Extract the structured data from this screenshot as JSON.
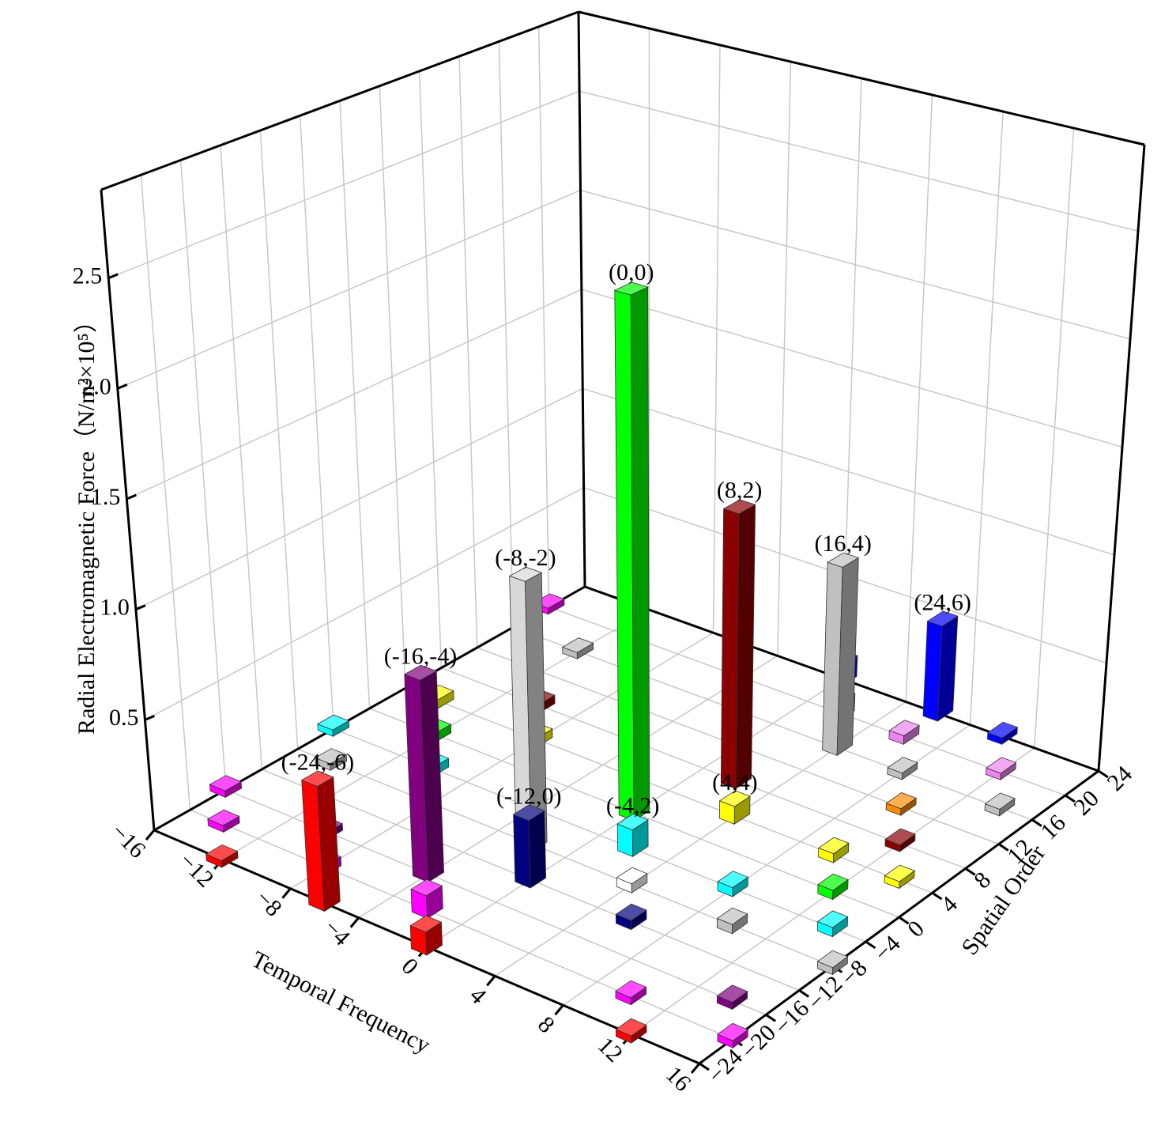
{
  "chart_data": {
    "type": "bar3d",
    "x_label": "Temporal Frequency",
    "y_label": "Spatial Order",
    "z_label": "Radial Electromagnetic Force（N/m²×10⁵）",
    "xlim": [
      -16,
      16
    ],
    "ylim": [
      -24,
      24
    ],
    "zlim": [
      0,
      2.9
    ],
    "xticks": [
      {
        "value": -16,
        "label": "−16"
      },
      {
        "value": -12,
        "label": "−12"
      },
      {
        "value": -8,
        "label": "−8"
      },
      {
        "value": -4,
        "label": "−4"
      },
      0,
      4,
      8,
      12,
      16
    ],
    "yticks": [
      {
        "value": -24,
        "label": "−24"
      },
      {
        "value": -20,
        "label": "−20"
      },
      {
        "value": -16,
        "label": "−16"
      },
      {
        "value": -12,
        "label": "−12"
      },
      {
        "value": -8,
        "label": "−8"
      },
      {
        "value": -4,
        "label": "−4"
      },
      0,
      4,
      8,
      12,
      16,
      20,
      24
    ],
    "zticks": [
      0.5,
      {
        "value": 1.0,
        "label": "1.0"
      },
      1.5,
      {
        "value": 2.0,
        "label": "2.0"
      },
      2.5
    ],
    "grid": true,
    "bars": [
      {
        "x": 0,
        "y": 0,
        "value": 2.4,
        "color": "#00ff00",
        "label": "(0,0)"
      },
      {
        "x": 2,
        "y": 8,
        "value": 1.27,
        "color": "#8b0000",
        "label": "(8,2)"
      },
      {
        "x": 4,
        "y": 16,
        "value": 0.88,
        "color": "#c0c0c0",
        "label": "(16,4)"
      },
      {
        "x": 6,
        "y": 24,
        "value": 0.45,
        "color": "#0000ff",
        "label": "(24,6)"
      },
      {
        "x": -2,
        "y": -8,
        "value": 1.22,
        "color": "#d8d8d8",
        "label": "(-8,-2)"
      },
      {
        "x": -4,
        "y": -16,
        "value": 0.9,
        "color": "#800080",
        "label": "(-16,-4)"
      },
      {
        "x": -6,
        "y": -24,
        "value": 0.55,
        "color": "#ff0000",
        "label": "(-24,-6)"
      },
      {
        "x": 0,
        "y": -12,
        "value": 0.3,
        "color": "#000080",
        "label": "(-12,0)"
      },
      {
        "x": 2,
        "y": -4,
        "value": 0.12,
        "color": "#00ffff",
        "label": "(-4,2)"
      },
      {
        "x": 4,
        "y": 4,
        "value": 0.08,
        "color": "#ffff00",
        "label": "(4,4)"
      },
      {
        "x": -2,
        "y": -20,
        "value": 0.1,
        "color": "#ff00ff"
      },
      {
        "x": 0,
        "y": -24,
        "value": 0.1,
        "color": "#ff0000"
      },
      {
        "x": -12,
        "y": -24,
        "value": 0.03,
        "color": "#ff0000"
      },
      {
        "x": -14,
        "y": -20,
        "value": 0.03,
        "color": "#ff00ff"
      },
      {
        "x": -16,
        "y": -16,
        "value": 0.03,
        "color": "#ff00ff"
      },
      {
        "x": -10,
        "y": -16,
        "value": 0.03,
        "color": "#800080"
      },
      {
        "x": -8,
        "y": -20,
        "value": 0.04,
        "color": "#ff00ff"
      },
      {
        "x": -14,
        "y": -8,
        "value": 0.03,
        "color": "#c0c0c0"
      },
      {
        "x": -16,
        "y": -4,
        "value": 0.03,
        "color": "#00ffff"
      },
      {
        "x": -10,
        "y": -4,
        "value": 0.04,
        "color": "#00ffff"
      },
      {
        "x": -12,
        "y": 0,
        "value": 0.04,
        "color": "#00ff00"
      },
      {
        "x": -14,
        "y": 4,
        "value": 0.04,
        "color": "#ffff00"
      },
      {
        "x": -16,
        "y": 20,
        "value": 0.03,
        "color": "#ff00ff"
      },
      {
        "x": -12,
        "y": 16,
        "value": 0.03,
        "color": "#c0c0c0"
      },
      {
        "x": -10,
        "y": 8,
        "value": 0.04,
        "color": "#8b0000"
      },
      {
        "x": -8,
        "y": 4,
        "value": 0.04,
        "color": "#ffff00"
      },
      {
        "x": 4,
        "y": -8,
        "value": 0.04,
        "color": "#ffffff"
      },
      {
        "x": 6,
        "y": -12,
        "value": 0.04,
        "color": "#000080"
      },
      {
        "x": 10,
        "y": -20,
        "value": 0.03,
        "color": "#ff00ff"
      },
      {
        "x": 12,
        "y": -24,
        "value": 0.03,
        "color": "#ff0000"
      },
      {
        "x": 8,
        "y": -4,
        "value": 0.04,
        "color": "#00ffff"
      },
      {
        "x": 10,
        "y": -8,
        "value": 0.04,
        "color": "#c0c0c0"
      },
      {
        "x": 14,
        "y": -16,
        "value": 0.03,
        "color": "#800080"
      },
      {
        "x": 16,
        "y": -20,
        "value": 0.03,
        "color": "#ff00ff"
      },
      {
        "x": 10,
        "y": 4,
        "value": 0.04,
        "color": "#ffff00"
      },
      {
        "x": 12,
        "y": 0,
        "value": 0.04,
        "color": "#00ff00"
      },
      {
        "x": 14,
        "y": -4,
        "value": 0.04,
        "color": "#00ffff"
      },
      {
        "x": 16,
        "y": -8,
        "value": 0.03,
        "color": "#c0c0c0"
      },
      {
        "x": 0,
        "y": 24,
        "value": 0.1,
        "color": "#0000ff"
      },
      {
        "x": 2,
        "y": 20,
        "value": 0.08,
        "color": "#ee82ee"
      },
      {
        "x": 6,
        "y": 20,
        "value": 0.04,
        "color": "#ee82ee"
      },
      {
        "x": 8,
        "y": 16,
        "value": 0.03,
        "color": "#c0c0c0"
      },
      {
        "x": 10,
        "y": 12,
        "value": 0.03,
        "color": "#ff8c00"
      },
      {
        "x": 12,
        "y": 8,
        "value": 0.03,
        "color": "#8b0000"
      },
      {
        "x": 14,
        "y": 4,
        "value": 0.03,
        "color": "#ffff00"
      },
      {
        "x": 10,
        "y": 24,
        "value": 0.03,
        "color": "#0000ff"
      },
      {
        "x": 12,
        "y": 20,
        "value": 0.03,
        "color": "#ee82ee"
      },
      {
        "x": 14,
        "y": 16,
        "value": 0.03,
        "color": "#c0c0c0"
      }
    ]
  }
}
